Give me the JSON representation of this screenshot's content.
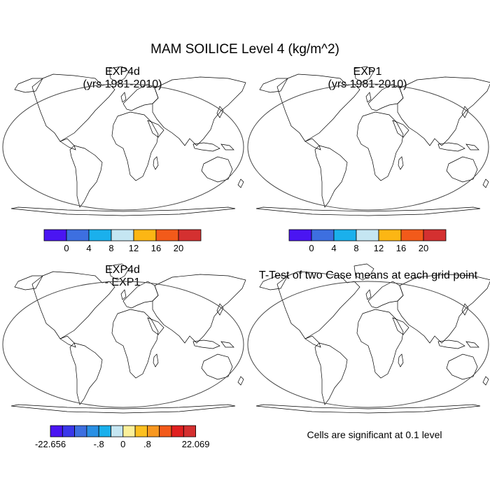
{
  "figure": {
    "title": "MAM SOILICE Level 4 (kg/m^2)"
  },
  "panels": {
    "top_left": {
      "title_line1": "EXP4d",
      "title_line2": "(yrs 1981-2010)"
    },
    "top_right": {
      "title_line1": "EXP1",
      "title_line2": "(yrs 1981-2010)"
    },
    "bottom_left": {
      "title_line1": "EXP4d",
      "title_line2": "- EXP1"
    },
    "bottom_right": {
      "title": "T-Test of two Case means at each grid point",
      "note": "Cells are significant at 0.1 level"
    }
  },
  "colorbar_top": {
    "colors": [
      "#4a15f2",
      "#3d6fe0",
      "#1ab0ec",
      "#c5e6f2",
      "#fcb614",
      "#f25a1a",
      "#d43030"
    ],
    "labels": [
      "0",
      "4",
      "8",
      "12",
      "16",
      "20"
    ]
  },
  "colorbar_diff": {
    "colors": [
      "#4a15f2",
      "#3a37ea",
      "#3d6fe0",
      "#2a90e4",
      "#1ab0ec",
      "#c5e6f2",
      "#fbf09a",
      "#fcc020",
      "#f89820",
      "#f25a1a",
      "#e02020",
      "#d43030"
    ],
    "labels": [
      "-22.656",
      "-.8",
      "0",
      ".8",
      "22.069"
    ]
  },
  "map_colors": {
    "ocean": "#ffffff",
    "land_low": "#3d6fe0",
    "land_diff": "#fbf59e",
    "significant": "#ff0000",
    "coast": "#000000"
  }
}
